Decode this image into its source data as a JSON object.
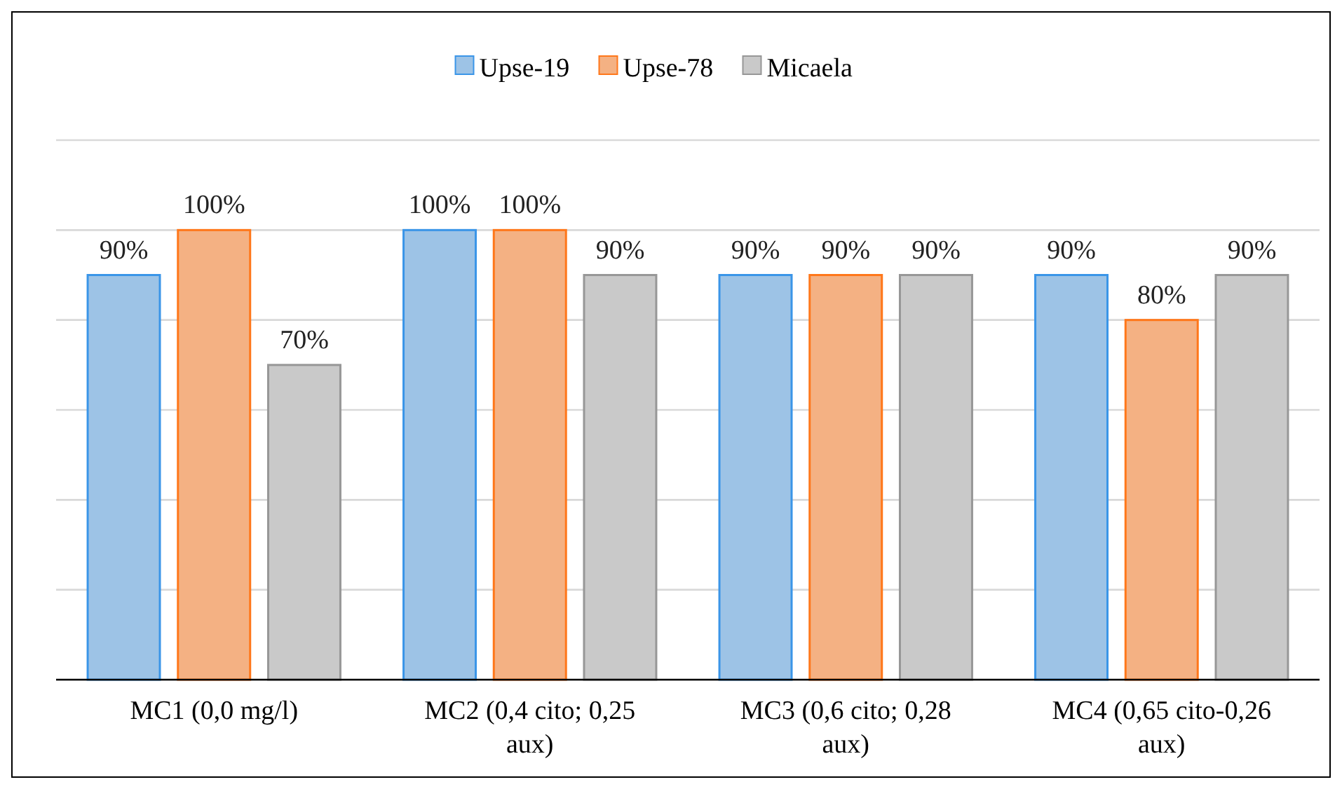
{
  "chart_data": {
    "type": "bar",
    "categories": [
      "MC1 (0,0 mg/l)",
      "MC2 (0,4 cito; 0,25 aux)",
      "MC3 (0,6 cito; 0,28 aux)",
      "MC4 (0,65 cito-0,26 aux)"
    ],
    "series": [
      {
        "name": "Upse-19",
        "color": "#9dc3e6",
        "values": [
          90,
          100,
          90,
          90
        ],
        "value_labels": [
          "90%",
          "100%",
          "90%",
          "90%"
        ]
      },
      {
        "name": "Upse-78",
        "color": "#f4b183",
        "values": [
          100,
          100,
          90,
          80
        ],
        "value_labels": [
          "100%",
          "100%",
          "90%",
          "80%"
        ]
      },
      {
        "name": "Micaela",
        "color": "#c9c9c9",
        "values": [
          70,
          90,
          90,
          90
        ],
        "value_labels": [
          "70%",
          "90%",
          "90%",
          "90%"
        ]
      }
    ],
    "ylim": [
      0,
      120
    ],
    "yticks": [
      {
        "value": 0,
        "label": null
      },
      {
        "value": 20,
        "label": null
      },
      {
        "value": 40,
        "label": null
      },
      {
        "value": 60,
        "label": null
      },
      {
        "value": 80,
        "label": null
      },
      {
        "value": 100,
        "label": null
      },
      {
        "value": 120,
        "label": null
      }
    ],
    "tick_labels": "x",
    "grid": "y",
    "legend": "top"
  }
}
